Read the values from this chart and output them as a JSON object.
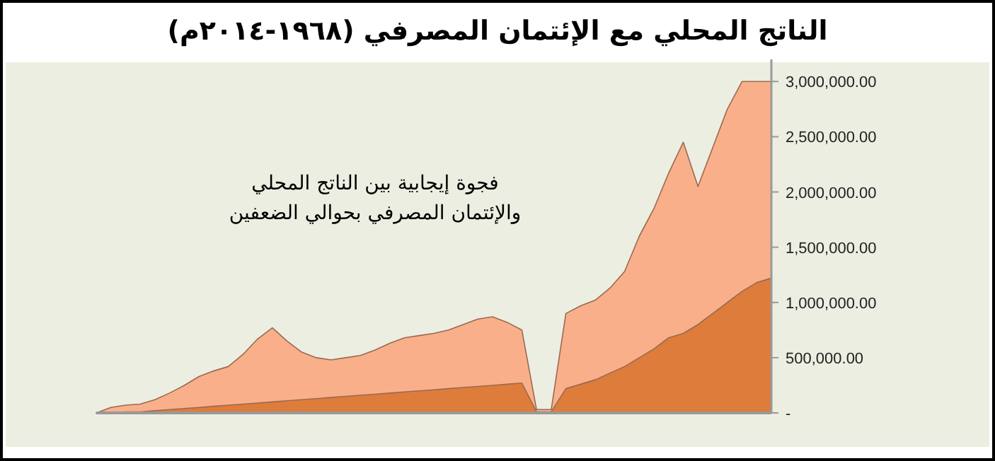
{
  "chart_data": {
    "type": "area",
    "title": "الناتج المحلي مع الإئتمان المصرفي (١٩٦٨-٢٠١٤م)",
    "annotations": [
      "فجوة إيجابية بين الناتج المحلي",
      "والإئتمان المصرفي بحوالي الضعفين"
    ],
    "categories": [
      null,
      null,
      null,
      null,
      null,
      null,
      null,
      null,
      null,
      null,
      null,
      null,
      null,
      null,
      null,
      null,
      null,
      null,
      null,
      null,
      null,
      null,
      null,
      null,
      null,
      null,
      null,
      null,
      null,
      null,
      null,
      null,
      null,
      null,
      null,
      null,
      null,
      null,
      null,
      null,
      null,
      null,
      null,
      null,
      null,
      null,
      null
    ],
    "series": [
      {
        "color": "#f9b08a",
        "values": [
          0,
          50000,
          70000,
          80000,
          120000,
          180000,
          250000,
          330000,
          380000,
          420000,
          530000,
          670000,
          770000,
          650000,
          550000,
          500000,
          480000,
          500000,
          520000,
          570000,
          630000,
          680000,
          700000,
          720000,
          750000,
          800000,
          850000,
          870000,
          820000,
          750000,
          30000,
          30000,
          900000,
          970000,
          1020000,
          1130000,
          1280000,
          1600000,
          1850000,
          2170000,
          2450000,
          2050000,
          2400000,
          2750000,
          3000000,
          3000000,
          3000000
        ]
      },
      {
        "color": "#de7c3c",
        "values": [
          0,
          0,
          10000,
          10000,
          20000,
          30000,
          40000,
          50000,
          60000,
          70000,
          80000,
          90000,
          100000,
          110000,
          120000,
          130000,
          140000,
          150000,
          160000,
          170000,
          180000,
          190000,
          200000,
          210000,
          220000,
          230000,
          240000,
          250000,
          260000,
          270000,
          10000,
          10000,
          220000,
          260000,
          300000,
          360000,
          420000,
          500000,
          580000,
          680000,
          720000,
          800000,
          900000,
          1000000,
          1100000,
          1180000,
          1220000
        ]
      }
    ],
    "ylim": [
      0,
      3200000
    ],
    "yticks": [
      {
        "value": 0,
        "label": "-"
      },
      {
        "value": 500000,
        "label": "500,000.00"
      },
      {
        "value": 1000000,
        "label": "1,000,000.00"
      },
      {
        "value": 1500000,
        "label": "1,500,000.00"
      },
      {
        "value": 2000000,
        "label": "2,000,000.00"
      },
      {
        "value": 2500000,
        "label": "2,500,000.00"
      },
      {
        "value": 3000000,
        "label": "3,000,000.00"
      }
    ]
  }
}
